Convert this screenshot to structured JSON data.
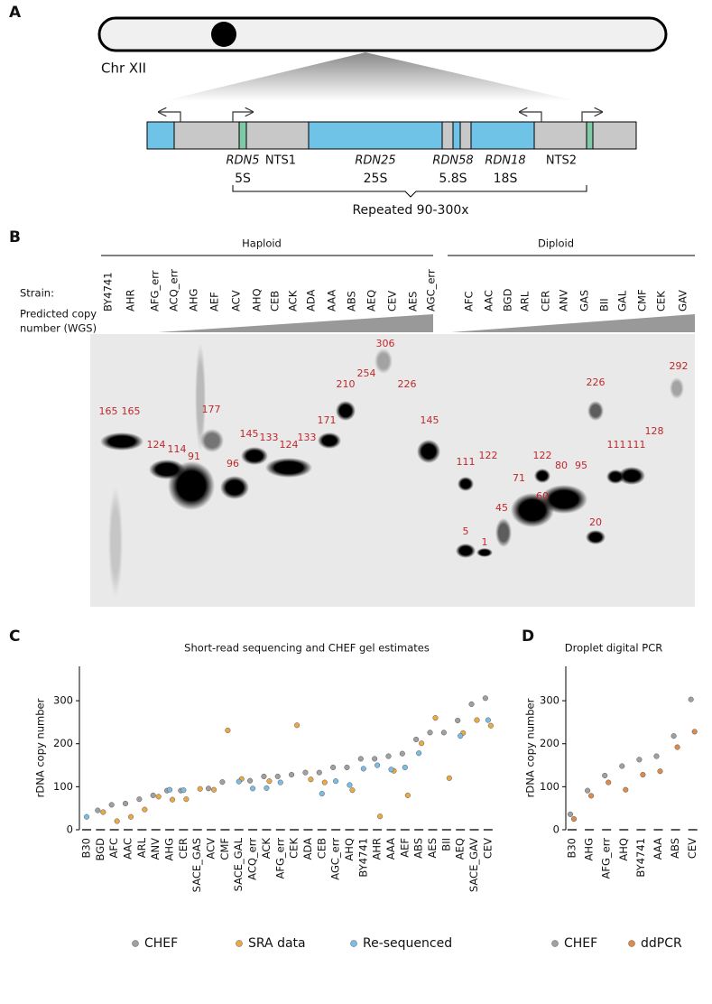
{
  "panel_letters": [
    "A",
    "B",
    "C",
    "D"
  ],
  "panel_a": {
    "chromosome": "Chr XII",
    "regions": [
      "RDN5",
      "NTS1",
      "RDN25",
      "RDN58",
      "RDN18",
      "NTS2"
    ],
    "products": [
      "5S",
      "25S",
      "5.8S",
      "18S"
    ],
    "repeat": "Repeated 90-300x"
  },
  "panel_b": {
    "groups": [
      "Haploid",
      "Diploid"
    ],
    "strain_label": "Strain:",
    "copy_label": [
      "Predicted copy",
      "number (WGS)"
    ],
    "haploid_strains": [
      "BY4741",
      "AHR",
      "AFG_err",
      "ACQ_err",
      "AHG",
      "AEF",
      "ACV",
      "AHQ",
      "CEB",
      "ACK",
      "ADA",
      "AAA",
      "ABS",
      "AEQ",
      "CEV",
      "AES",
      "AGC_err"
    ],
    "diploid_strains": [
      "AFC",
      "AAC",
      "BGD",
      "ARL",
      "CER",
      "ANV",
      "GAS",
      "BII",
      "GAL",
      "CMF",
      "CEK",
      "GAV"
    ],
    "band_labels": [
      165,
      165,
      124,
      114,
      91,
      177,
      96,
      145,
      133,
      124,
      133,
      171,
      210,
      254,
      306,
      226,
      145,
      111,
      5,
      122,
      1,
      45,
      71,
      60,
      122,
      80,
      95,
      226,
      20,
      111,
      111,
      128,
      292
    ]
  },
  "chart_data": [
    {
      "type": "scatter",
      "title": "Short-read sequencing and CHEF gel estimates",
      "y_label": "rDNA copy number",
      "categories": [
        "B30",
        "BGD",
        "AFC",
        "AAC",
        "ARL",
        "ANV",
        "AHG",
        "CER",
        "SACE_GAS",
        "ACV",
        "CMF",
        "SACE_GAL",
        "ACQ_err",
        "ACK",
        "AFG_err",
        "CEK",
        "ADA",
        "CEB",
        "AGC_err",
        "AHQ",
        "BY4741",
        "AHR",
        "AAA",
        "AEF",
        "ABS",
        "AES",
        "BII",
        "AEQ",
        "SACE_GAV",
        "CEV"
      ],
      "series": [
        {
          "name": "CHEF",
          "color": "#a0a0a0",
          "values": [
            null,
            45,
            58,
            61,
            71,
            80,
            91,
            91,
            null,
            96,
            111,
            null,
            114,
            124,
            124,
            128,
            133,
            133,
            145,
            145,
            165,
            165,
            171,
            177,
            210,
            226,
            226,
            254,
            292,
            306
          ]
        },
        {
          "name": "SRA data",
          "color": "#e9a947",
          "values": [
            null,
            41,
            20,
            30,
            47,
            77,
            70,
            71,
            95,
            93,
            231,
            118,
            null,
            113,
            null,
            243,
            117,
            110,
            null,
            92,
            null,
            31,
            137,
            80,
            201,
            260,
            120,
            225,
            255,
            242
          ]
        },
        {
          "name": "Re-sequenced",
          "color": "#7cbde6",
          "values": [
            30,
            null,
            null,
            null,
            null,
            null,
            93,
            92,
            null,
            null,
            null,
            112,
            96,
            97,
            110,
            null,
            null,
            84,
            113,
            104,
            142,
            150,
            140,
            145,
            178,
            null,
            null,
            218,
            null,
            255
          ]
        }
      ],
      "ylim": [
        0,
        380
      ],
      "yticks": [
        0,
        100,
        200,
        300
      ]
    },
    {
      "type": "scatter",
      "title": "Droplet digital PCR",
      "y_label": "rDNA copy number",
      "categories": [
        "B30",
        "AHG",
        "AFG_err",
        "AHQ",
        "BY4741",
        "AAA",
        "ABS",
        "CEV"
      ],
      "series": [
        {
          "name": "CHEF",
          "color": "#a0a0a0",
          "values": [
            36,
            91,
            126,
            148,
            163,
            171,
            218,
            303
          ]
        },
        {
          "name": "ddPCR",
          "color": "#de8a4a",
          "values": [
            25,
            79,
            110,
            93,
            128,
            136,
            192,
            228
          ]
        }
      ],
      "ylim": [
        0,
        380
      ],
      "yticks": [
        0,
        100,
        200,
        300
      ]
    }
  ]
}
